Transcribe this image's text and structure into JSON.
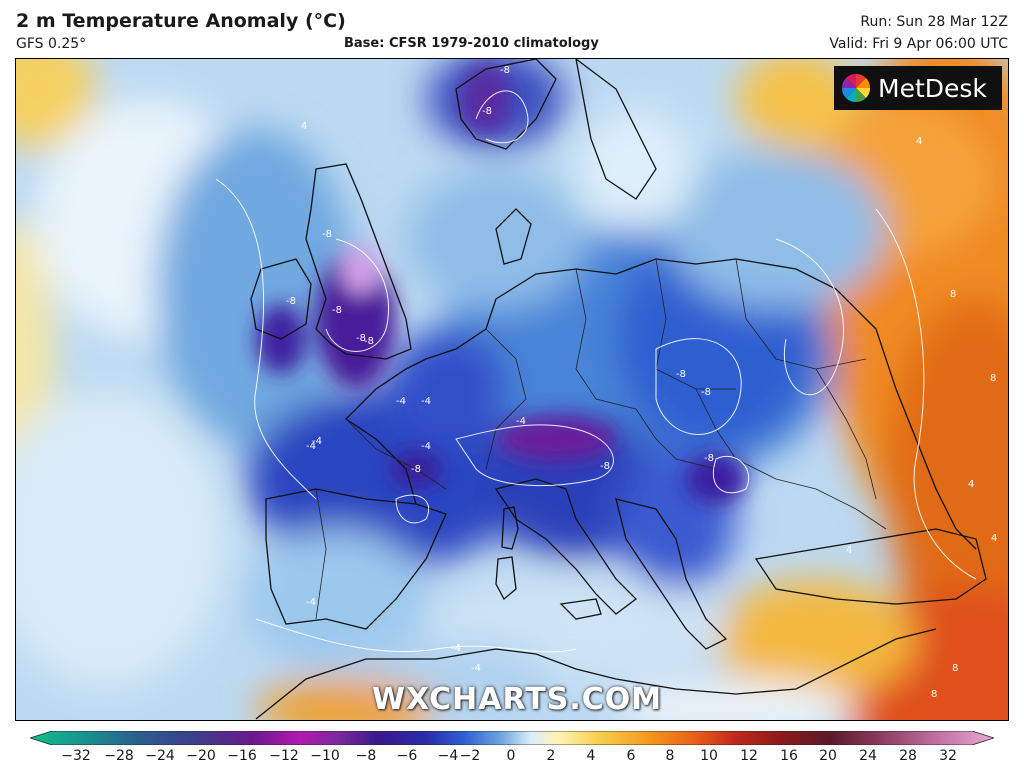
{
  "header": {
    "title": "2 m Temperature Anomaly (°C)",
    "model": "GFS 0.25°",
    "base": "Base: CFSR 1979-2010 climatology",
    "run": "Run: Sun 28 Mar 12Z",
    "valid": "Valid: Fri 9 Apr 06:00 UTC"
  },
  "logo": {
    "text": "MetDesk",
    "icon": "pinwheel-icon"
  },
  "watermark": "WXCHARTS.COM",
  "colorbar": {
    "ticks": [
      "−32",
      "−28",
      "−24",
      "−20",
      "−16",
      "−12",
      "−10",
      "−8",
      "−6",
      "−4",
      "−2",
      "0",
      "2",
      "4",
      "6",
      "8",
      "10",
      "12",
      "16",
      "20",
      "24",
      "28",
      "32"
    ],
    "colors": [
      "#0fbf8c",
      "#1b8f8f",
      "#2a5f8f",
      "#3b3f8a",
      "#6a1a8a",
      "#b01ab0",
      "#7a2a9a",
      "#3a1a8a",
      "#2a2aa8",
      "#2f5fd0",
      "#6fa8e0",
      "#dceefa",
      "#fff2b0",
      "#f7cf50",
      "#f39a20",
      "#e8601a",
      "#c02a1a",
      "#8a1a1a",
      "#5a1a2a",
      "#8a3a5a",
      "#c070a0",
      "#e8a8d0"
    ]
  },
  "contour_labels": [
    "-8",
    "-8",
    "-8",
    "-8",
    "-8",
    "-4",
    "-8",
    "-8",
    "-4",
    "-4",
    "-8",
    "-4",
    "-8",
    "-8",
    "-8",
    "4",
    "8",
    "8",
    "4",
    "-4",
    "-4",
    "4",
    "8",
    "-4",
    "-8",
    "4",
    "4",
    "-4",
    "-4",
    "8"
  ],
  "colors": {
    "cold_deep": "#4a148c",
    "cold": "#2d4fc8",
    "cool": "#8fbde8",
    "warm": "#f0a030",
    "hot": "#d0401a"
  }
}
